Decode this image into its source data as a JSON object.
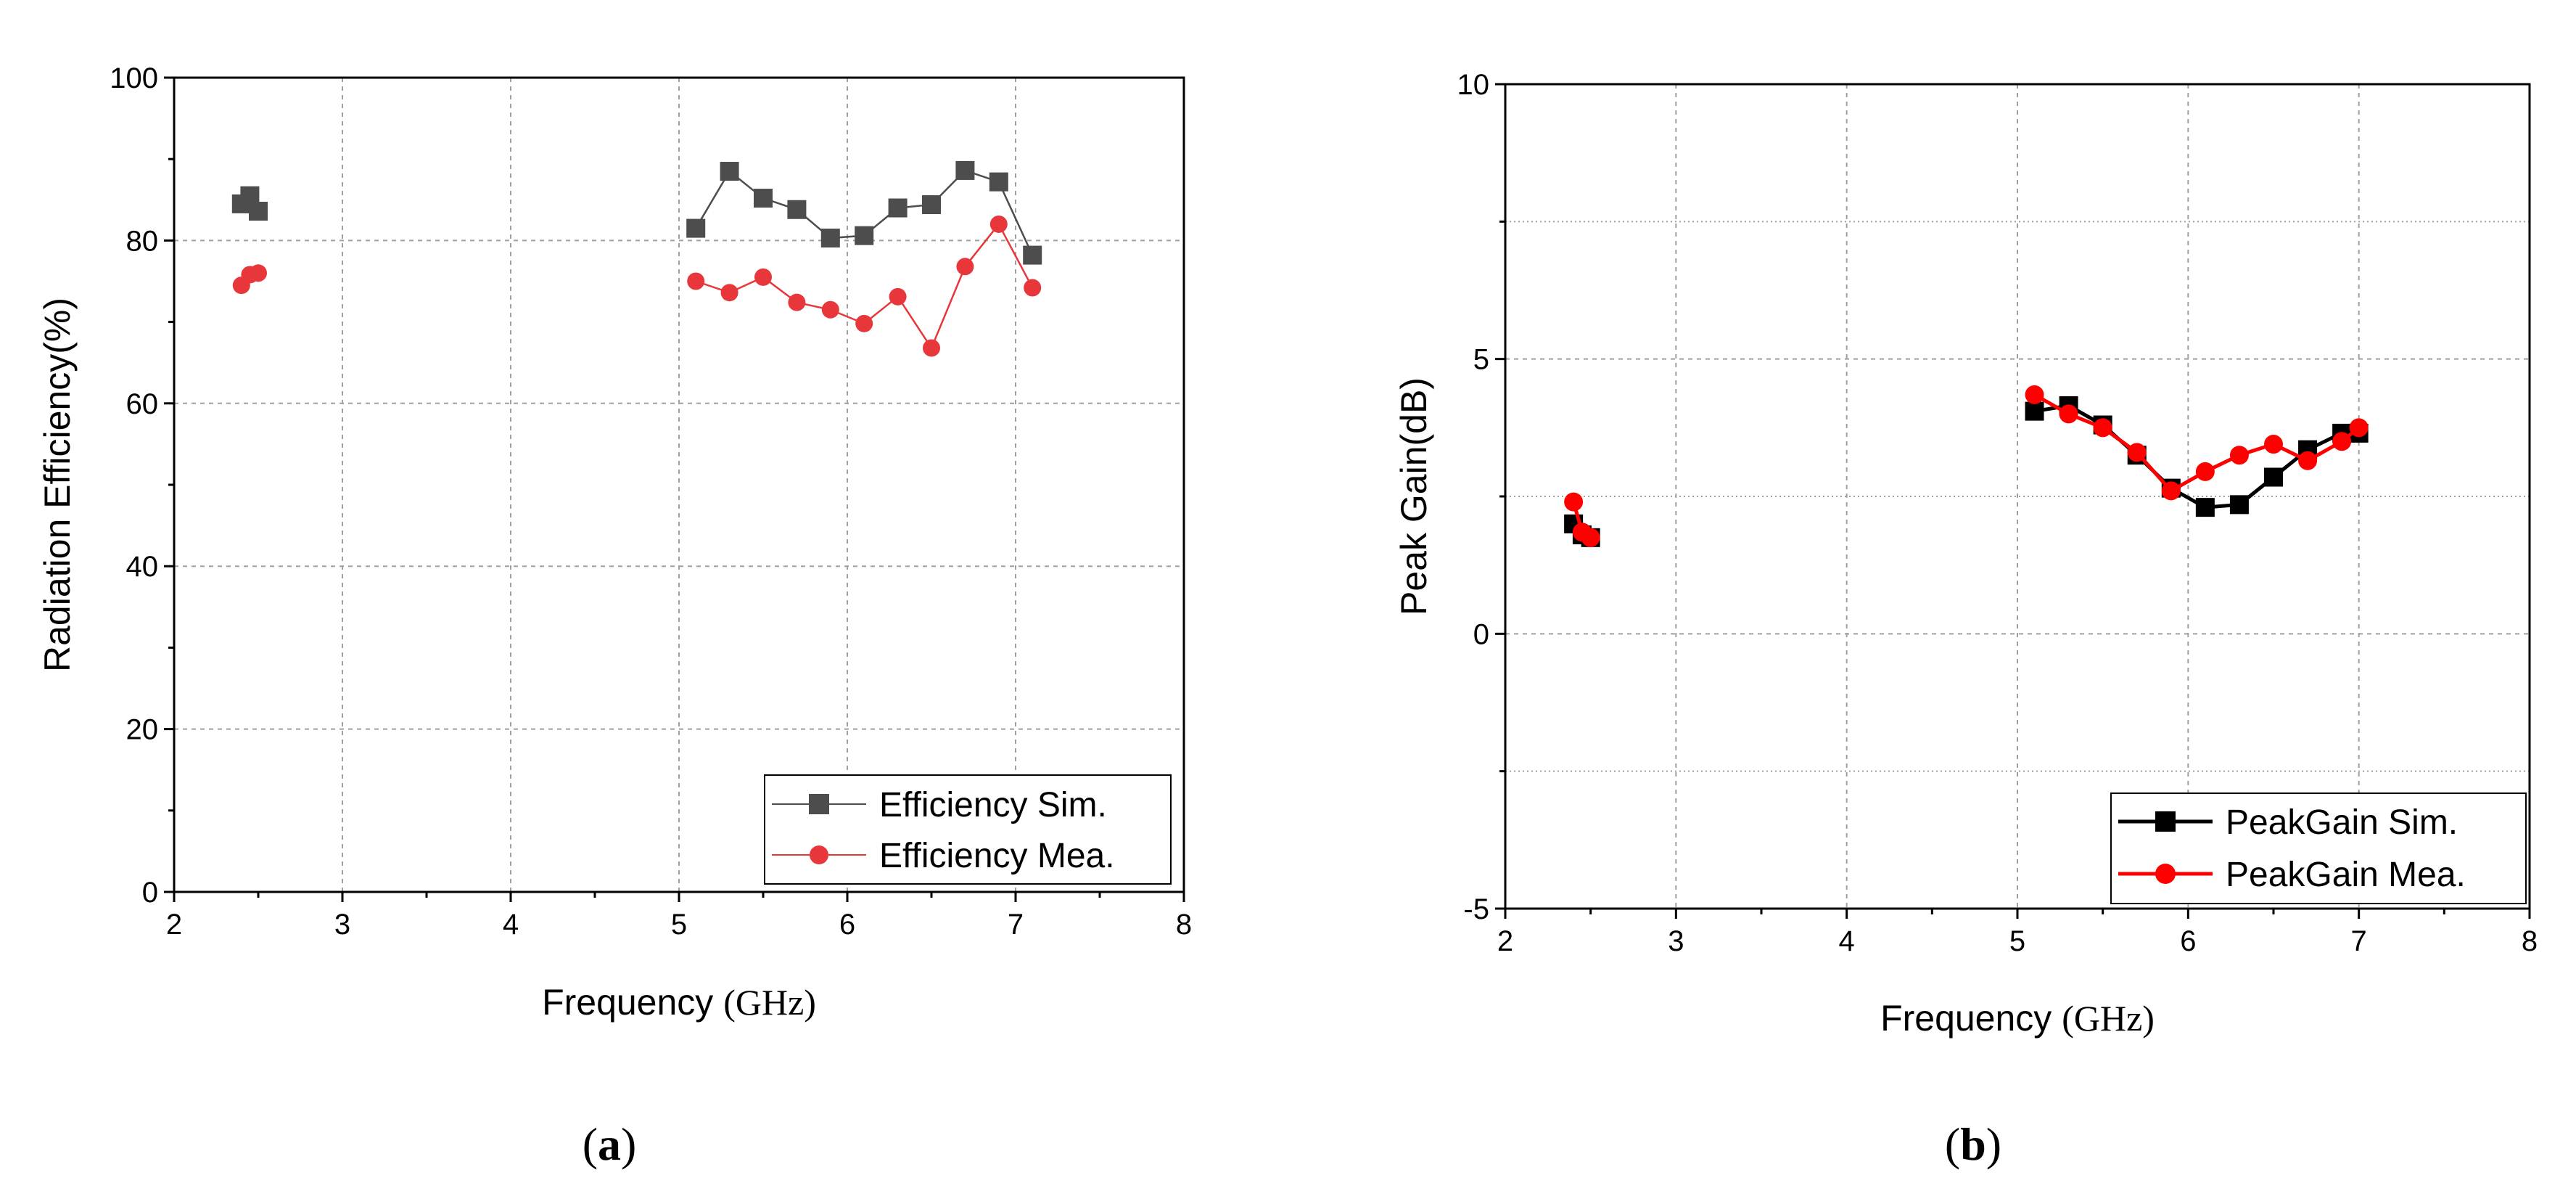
{
  "colors": {
    "sim_a": "#4d4d4d",
    "mea_a": "#e8373a",
    "sim_b": "#000000",
    "mea_b": "#ff0000",
    "grid": "#a0a0a0"
  },
  "chart_data": [
    {
      "id": "a",
      "type": "line",
      "caption_open": "(",
      "caption_letter": "a",
      "caption_close": ")",
      "xlabel": "Frequency",
      "xunit": "(GHz)",
      "ylabel": "Radiation Efficiency(%)",
      "xlim": [
        2,
        8
      ],
      "ylim": [
        0,
        100
      ],
      "xticks": [
        "2",
        "3",
        "4",
        "5",
        "6",
        "7",
        "8"
      ],
      "yticks": [
        "0",
        "20",
        "40",
        "60",
        "80",
        "100"
      ],
      "series": [
        {
          "name": "Efficiency Sim.",
          "marker": "square",
          "x": [
            2.4,
            2.45,
            2.5,
            5.1,
            5.3,
            5.5,
            5.7,
            5.9,
            6.1,
            6.3,
            6.5,
            6.7,
            6.9,
            7.1
          ],
          "y": [
            84.5,
            85.5,
            83.6,
            81.5,
            88.5,
            85.2,
            83.8,
            80.3,
            80.6,
            84.0,
            84.4,
            88.6,
            87.2,
            78.2
          ],
          "segments": [
            [
              0,
              2
            ],
            [
              3,
              13
            ]
          ]
        },
        {
          "name": "Efficiency Mea.",
          "marker": "circle",
          "x": [
            2.4,
            2.45,
            2.5,
            5.1,
            5.3,
            5.5,
            5.7,
            5.9,
            6.1,
            6.3,
            6.5,
            6.7,
            6.9,
            7.1
          ],
          "y": [
            74.5,
            75.8,
            76.0,
            75.0,
            73.6,
            75.5,
            72.4,
            71.5,
            69.8,
            73.1,
            66.8,
            76.8,
            82.0,
            74.2
          ],
          "segments": [
            [
              0,
              2
            ],
            [
              3,
              13
            ]
          ]
        }
      ]
    },
    {
      "id": "b",
      "type": "line",
      "caption_open": "(",
      "caption_letter": "b",
      "caption_close": ")",
      "xlabel": "Frequency",
      "xunit": "(GHz)",
      "ylabel": "Peak Gain(dB)",
      "xlim": [
        2,
        8
      ],
      "ylim": [
        -5,
        10
      ],
      "xticks": [
        "2",
        "3",
        "4",
        "5",
        "6",
        "7",
        "8"
      ],
      "yticks": [
        "-5",
        "0",
        "5",
        "10"
      ],
      "series": [
        {
          "name": "PeakGain Sim.",
          "marker": "square",
          "x": [
            2.4,
            2.45,
            2.5,
            5.1,
            5.3,
            5.5,
            5.7,
            5.9,
            6.1,
            6.3,
            6.5,
            6.7,
            6.9,
            7.0
          ],
          "y": [
            2.0,
            1.8,
            1.75,
            4.05,
            4.15,
            3.8,
            3.25,
            2.65,
            2.3,
            2.35,
            2.85,
            3.35,
            3.65,
            3.65
          ],
          "segments": [
            [
              0,
              2
            ],
            [
              3,
              13
            ]
          ]
        },
        {
          "name": "PeakGain Mea.",
          "marker": "circle",
          "x": [
            2.4,
            2.45,
            2.5,
            5.1,
            5.3,
            5.5,
            5.7,
            5.9,
            6.1,
            6.3,
            6.5,
            6.7,
            6.9,
            7.0
          ],
          "y": [
            2.4,
            1.85,
            1.75,
            4.35,
            4.0,
            3.75,
            3.3,
            2.6,
            2.95,
            3.25,
            3.45,
            3.15,
            3.5,
            3.75
          ],
          "segments": [
            [
              0,
              2
            ],
            [
              3,
              13
            ]
          ]
        }
      ]
    }
  ]
}
